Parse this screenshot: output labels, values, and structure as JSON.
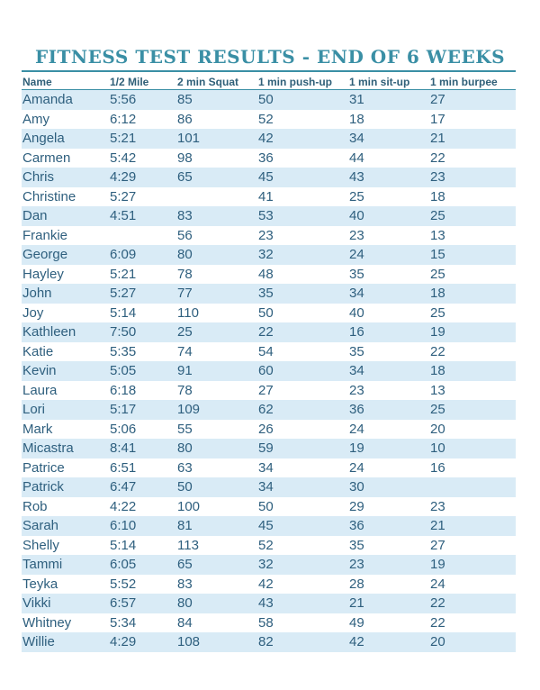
{
  "document": {
    "title": "FITNESS TEST RESULTS - END OF 6 WEEKS",
    "colors": {
      "accent": "#3a8fa5",
      "text": "#2e5f7e",
      "stripe": "#d9ebf6"
    }
  },
  "table": {
    "headers": [
      "Name",
      "1/2 Mile",
      "2 min Squat",
      "1 min push-up",
      "1 min sit-up",
      "1 min burpee"
    ],
    "rows": [
      [
        "Amanda",
        "5:56",
        "85",
        "50",
        "31",
        "27"
      ],
      [
        "Amy",
        "6:12",
        "86",
        "52",
        "18",
        "17"
      ],
      [
        "Angela",
        "5:21",
        "101",
        "42",
        "34",
        "21"
      ],
      [
        "Carmen",
        "5:42",
        "98",
        "36",
        "44",
        "22"
      ],
      [
        "Chris",
        "4:29",
        "65",
        "45",
        "43",
        "23"
      ],
      [
        "Christine",
        "5:27",
        "",
        "41",
        "25",
        "18"
      ],
      [
        "Dan",
        "4:51",
        "83",
        "53",
        "40",
        "25"
      ],
      [
        "Frankie",
        "",
        "56",
        "23",
        "23",
        "13"
      ],
      [
        "George",
        "6:09",
        "80",
        "32",
        "24",
        "15"
      ],
      [
        "Hayley",
        "5:21",
        "78",
        "48",
        "35",
        "25"
      ],
      [
        "John",
        "5:27",
        "77",
        "35",
        "34",
        "18"
      ],
      [
        "Joy",
        "5:14",
        "110",
        "50",
        "40",
        "25"
      ],
      [
        "Kathleen",
        "7:50",
        "25",
        "22",
        "16",
        "19"
      ],
      [
        "Katie",
        "5:35",
        "74",
        "54",
        "35",
        "22"
      ],
      [
        "Kevin",
        "5:05",
        "91",
        "60",
        "34",
        "18"
      ],
      [
        "Laura",
        "6:18",
        "78",
        "27",
        "23",
        "13"
      ],
      [
        "Lori",
        "5:17",
        "109",
        "62",
        "36",
        "25"
      ],
      [
        "Mark",
        "5:06",
        "55",
        "26",
        "24",
        "20"
      ],
      [
        "Micastra",
        "8:41",
        "80",
        "59",
        "19",
        "10"
      ],
      [
        "Patrice",
        "6:51",
        "63",
        "34",
        "24",
        "16"
      ],
      [
        "Patrick",
        "6:47",
        "50",
        "34",
        "30",
        ""
      ],
      [
        "Rob",
        "4:22",
        "100",
        "50",
        "29",
        "23"
      ],
      [
        "Sarah",
        "6:10",
        "81",
        "45",
        "36",
        "21"
      ],
      [
        "Shelly",
        "5:14",
        "113",
        "52",
        "35",
        "27"
      ],
      [
        "Tammi",
        "6:05",
        "65",
        "32",
        "23",
        "19"
      ],
      [
        "Teyka",
        "5:52",
        "83",
        "42",
        "28",
        "24"
      ],
      [
        "Vikki",
        "6:57",
        "80",
        "43",
        "21",
        "22"
      ],
      [
        "Whitney",
        "5:34",
        "84",
        "58",
        "49",
        "22"
      ],
      [
        "Willie",
        "4:29",
        "108",
        "82",
        "42",
        "20"
      ]
    ]
  }
}
